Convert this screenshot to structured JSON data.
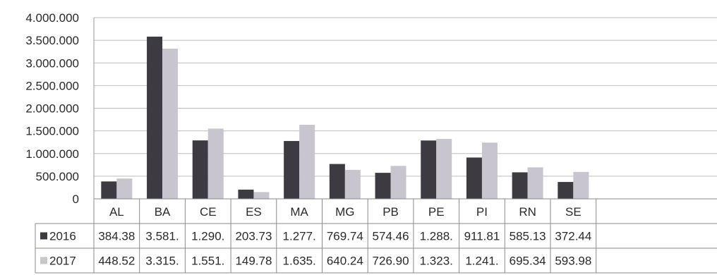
{
  "chart_data": {
    "type": "bar",
    "title": "",
    "xlabel": "",
    "ylabel": "",
    "ylim": [
      0,
      4000000
    ],
    "y_ticks": [
      "0",
      "500.000",
      "1.000.000",
      "1.500.000",
      "2.000.000",
      "2.500.000",
      "3.000.000",
      "3.500.000",
      "4.000.000"
    ],
    "y_tick_values": [
      0,
      500000,
      1000000,
      1500000,
      2000000,
      2500000,
      3000000,
      3500000,
      4000000
    ],
    "grid": true,
    "legend": "data-table rows",
    "categories": [
      "AL",
      "BA",
      "CE",
      "ES",
      "MA",
      "MG",
      "PB",
      "PE",
      "PI",
      "RN",
      "SE"
    ],
    "series": [
      {
        "name": "2016",
        "color": "#3d3a42",
        "values": [
          384380,
          3581000,
          1290000,
          203730,
          1277000,
          769740,
          574460,
          1288000,
          911810,
          585130,
          372440
        ],
        "table_labels": [
          "384.38",
          "3.581.",
          "1.290.",
          "203.73",
          "1.277.",
          "769.74",
          "574.46",
          "1.288.",
          "911.81",
          "585.13",
          "372.44"
        ]
      },
      {
        "name": "2017",
        "color": "#c9c5cf",
        "values": [
          448520,
          3315000,
          1551000,
          149780,
          1635000,
          640240,
          726900,
          1323000,
          1241000,
          695340,
          593980
        ],
        "table_labels": [
          "448.52",
          "3.315.",
          "1.551.",
          "149.78",
          "1.635.",
          "640.24",
          "726.90",
          "1.323.",
          "1.241.",
          "695.34",
          "593.98"
        ]
      }
    ]
  }
}
